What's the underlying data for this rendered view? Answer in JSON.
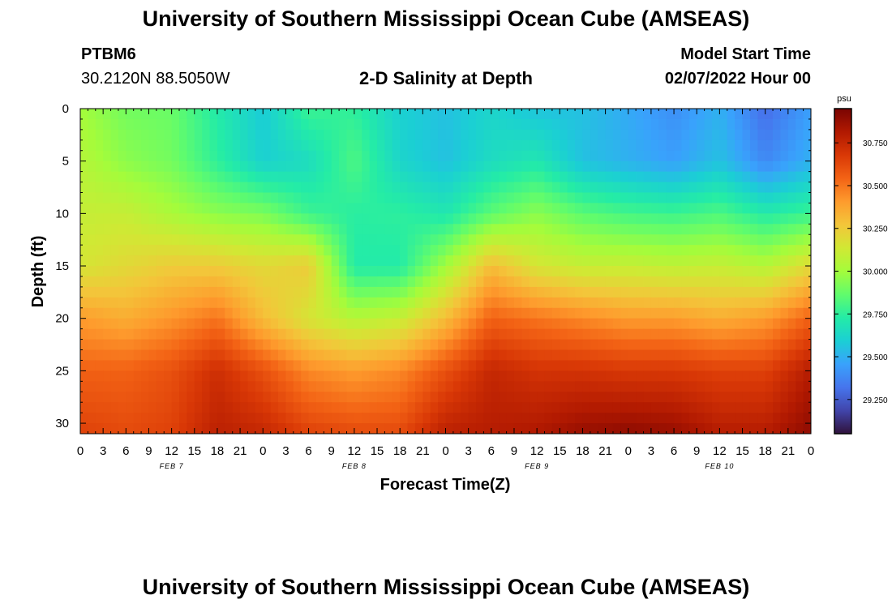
{
  "header": {
    "title": "University of Southern Mississippi Ocean Cube (AMSEAS)",
    "station": "PTBM6",
    "coords": "30.2120N  88.5050W",
    "subtitle": "2-D Salinity at Depth",
    "model_start_label": "Model Start Time",
    "model_start_value": "02/07/2022 Hour 00"
  },
  "footer": {
    "title": "University of Southern Mississippi Ocean Cube (AMSEAS)"
  },
  "chart_data": {
    "type": "heatmap",
    "title": "2-D Salinity at Depth",
    "xlabel": "Forecast Time(Z)",
    "ylabel": "Depth (ft)",
    "x_ticks": [
      "0",
      "3",
      "6",
      "9",
      "12",
      "15",
      "18",
      "21",
      "0",
      "3",
      "6",
      "9",
      "12",
      "15",
      "18",
      "21",
      "0",
      "3",
      "6",
      "9",
      "12",
      "15",
      "18",
      "21",
      "0",
      "3",
      "6",
      "9",
      "12",
      "15",
      "18",
      "21",
      "0"
    ],
    "x_range_hours": [
      0,
      96
    ],
    "day_labels": [
      {
        "label": "FEB 7",
        "hour": 12
      },
      {
        "label": "FEB 8",
        "hour": 36
      },
      {
        "label": "FEB 9",
        "hour": 60
      },
      {
        "label": "FEB 10",
        "hour": 84
      }
    ],
    "y_ticks": [
      0,
      5,
      10,
      15,
      20,
      25,
      30
    ],
    "y_range_ft": [
      0,
      31
    ],
    "colorbar": {
      "unit": "psu",
      "range": [
        29.05,
        30.95
      ],
      "ticks": [
        "30.750",
        "30.500",
        "30.250",
        "30.000",
        "29.750",
        "29.500",
        "29.250"
      ],
      "tick_values": [
        30.75,
        30.5,
        30.25,
        30.0,
        29.75,
        29.5,
        29.25
      ],
      "stops": [
        "#30123b",
        "#4145ab",
        "#4675ed",
        "#39a2fc",
        "#1bcfd4",
        "#24eca6",
        "#61fc6c",
        "#a4fc3b",
        "#d1e834",
        "#f3c63a",
        "#fe9b2d",
        "#f36315",
        "#d93806",
        "#b11901",
        "#7a0402"
      ]
    },
    "grid_columns_hours": [
      0,
      6,
      12,
      18,
      24,
      30,
      36,
      42,
      48,
      54,
      60,
      66,
      72,
      78,
      84,
      90,
      96
    ],
    "grid_rows_depth_ft": [
      0,
      5,
      10,
      15,
      20,
      25,
      31
    ],
    "salinity_psu": [
      [
        30.0,
        29.9,
        29.88,
        29.72,
        29.58,
        29.78,
        29.75,
        29.6,
        29.55,
        29.62,
        29.56,
        29.55,
        29.48,
        29.4,
        29.5,
        29.3,
        29.45
      ],
      [
        30.05,
        29.95,
        29.9,
        29.75,
        29.6,
        29.65,
        29.82,
        29.62,
        29.55,
        29.65,
        29.7,
        29.55,
        29.5,
        29.45,
        29.55,
        29.38,
        29.5
      ],
      [
        30.1,
        30.1,
        30.02,
        29.95,
        29.92,
        29.78,
        29.74,
        29.75,
        29.7,
        29.85,
        29.95,
        29.85,
        29.8,
        29.78,
        29.82,
        29.72,
        29.78
      ],
      [
        30.15,
        30.2,
        30.25,
        30.25,
        30.2,
        30.25,
        29.72,
        29.72,
        30.0,
        30.3,
        30.15,
        30.1,
        30.1,
        30.08,
        30.1,
        30.05,
        30.2
      ],
      [
        30.4,
        30.35,
        30.42,
        30.5,
        30.3,
        30.15,
        30.05,
        30.1,
        30.3,
        30.55,
        30.5,
        30.45,
        30.4,
        30.4,
        30.35,
        30.4,
        30.55
      ],
      [
        30.55,
        30.55,
        30.6,
        30.72,
        30.6,
        30.45,
        30.4,
        30.45,
        30.6,
        30.75,
        30.7,
        30.7,
        30.68,
        30.68,
        30.65,
        30.65,
        30.8
      ],
      [
        30.65,
        30.62,
        30.65,
        30.78,
        30.75,
        30.65,
        30.62,
        30.62,
        30.78,
        30.8,
        30.82,
        30.88,
        30.9,
        30.88,
        30.8,
        30.8,
        30.9
      ]
    ],
    "annotations": [
      "psu"
    ]
  }
}
